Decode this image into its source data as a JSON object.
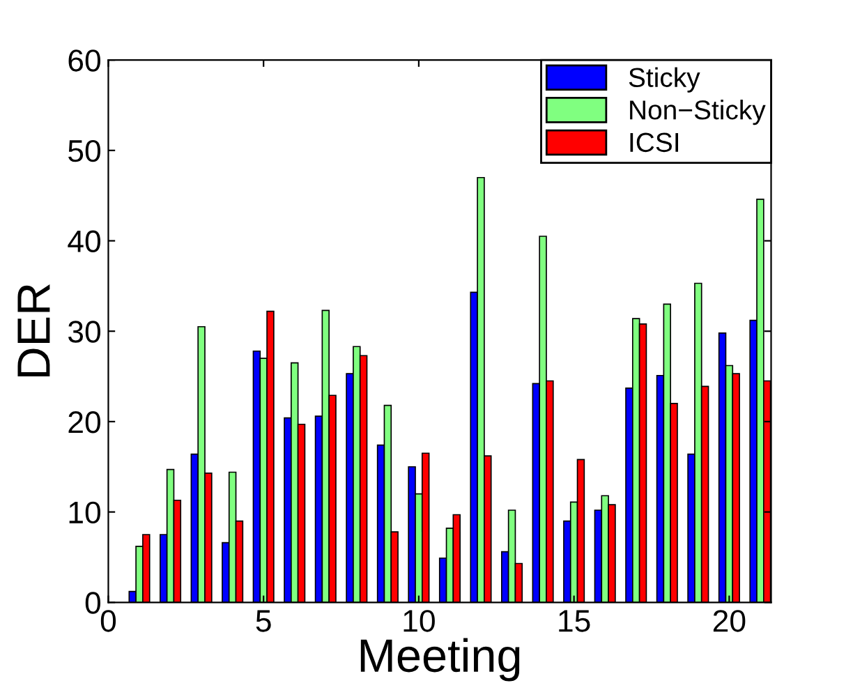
{
  "chart_data": {
    "type": "bar",
    "xlabel": "Meeting",
    "ylabel": "DER",
    "x": [
      1,
      2,
      3,
      4,
      5,
      6,
      7,
      8,
      9,
      10,
      11,
      12,
      13,
      14,
      15,
      16,
      17,
      18,
      19,
      20,
      21
    ],
    "series": [
      {
        "name": "Sticky",
        "color": "#0000ff",
        "values": [
          1.2,
          7.5,
          16.4,
          6.6,
          27.8,
          20.4,
          20.6,
          25.3,
          17.4,
          15.0,
          4.9,
          34.3,
          5.6,
          24.2,
          9.0,
          10.2,
          23.7,
          25.1,
          16.4,
          29.8,
          31.2
        ]
      },
      {
        "name": "Non−Sticky",
        "color": "#80ff80",
        "values": [
          6.2,
          14.7,
          30.5,
          14.4,
          27.0,
          26.5,
          32.3,
          28.3,
          21.8,
          12.0,
          8.2,
          47.0,
          10.2,
          40.5,
          11.1,
          11.8,
          31.4,
          33.0,
          35.3,
          26.2,
          44.6
        ]
      },
      {
        "name": "ICSI",
        "color": "#ff0000",
        "values": [
          7.5,
          11.3,
          14.3,
          9.0,
          32.2,
          19.7,
          22.9,
          27.3,
          7.8,
          16.5,
          9.7,
          16.2,
          4.3,
          24.5,
          15.8,
          10.8,
          30.8,
          22.0,
          23.9,
          25.3,
          24.5
        ]
      }
    ],
    "xlim": [
      0,
      21.35
    ],
    "xticks": [
      0,
      5,
      10,
      15,
      20
    ],
    "ylim": [
      0,
      60
    ],
    "yticks": [
      0,
      10,
      20,
      30,
      40,
      50,
      60
    ],
    "grid": false,
    "legend": "top right"
  }
}
